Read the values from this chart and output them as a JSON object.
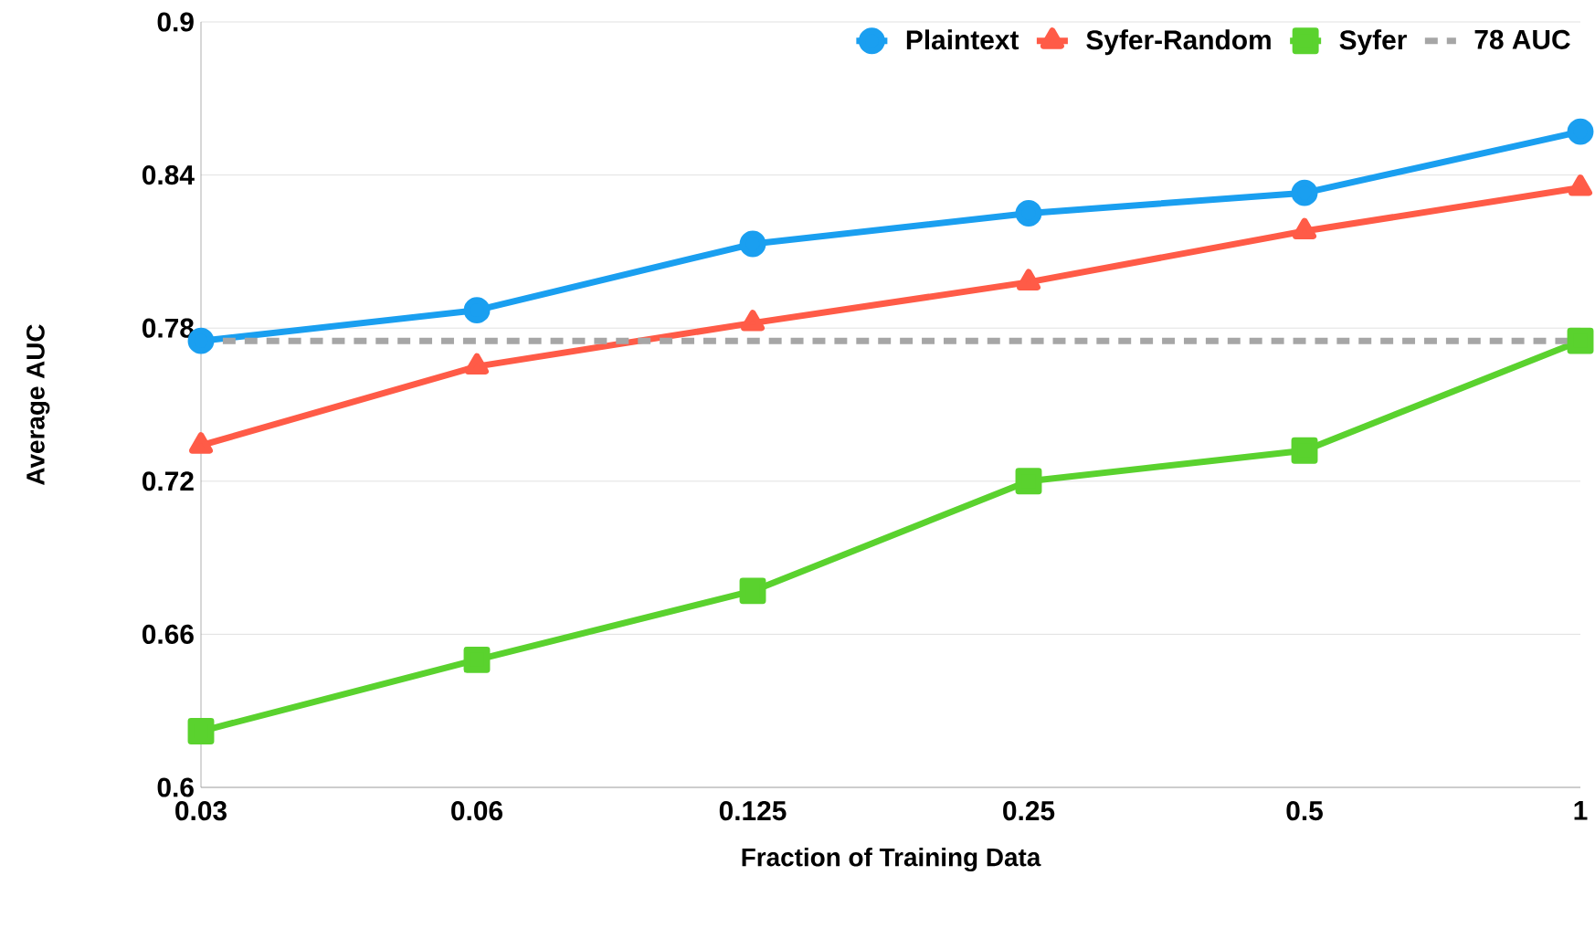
{
  "chart_data": {
    "type": "line",
    "xlabel": "Fraction of Training Data",
    "ylabel": "Average AUC",
    "categories": [
      "0.03",
      "0.06",
      "0.125",
      "0.25",
      "0.5",
      "1"
    ],
    "ylim": [
      0.6,
      0.9
    ],
    "yticks": [
      0.6,
      0.66,
      0.72,
      0.78,
      0.84,
      0.9
    ],
    "grid": "y",
    "legend": "top right",
    "line_style": "solid",
    "series": [
      {
        "name": "Plaintext",
        "color": "#1a9ff0",
        "marker": "circle",
        "values": [
          0.775,
          0.787,
          0.813,
          0.825,
          0.833,
          0.857
        ]
      },
      {
        "name": "Syfer-Random",
        "color": "#ff5b47",
        "marker": "triangle",
        "values": [
          0.734,
          0.765,
          0.782,
          0.798,
          0.818,
          0.835
        ]
      },
      {
        "name": "Syfer",
        "color": "#5ad22e",
        "marker": "square",
        "values": [
          0.622,
          0.65,
          0.677,
          0.72,
          0.732,
          0.775
        ]
      },
      {
        "name": "78 AUC",
        "color": "#a6a6a6",
        "marker": "none",
        "line_style": "dashed",
        "values": [
          0.775,
          0.775,
          0.775,
          0.775,
          0.775,
          0.775
        ]
      }
    ]
  }
}
